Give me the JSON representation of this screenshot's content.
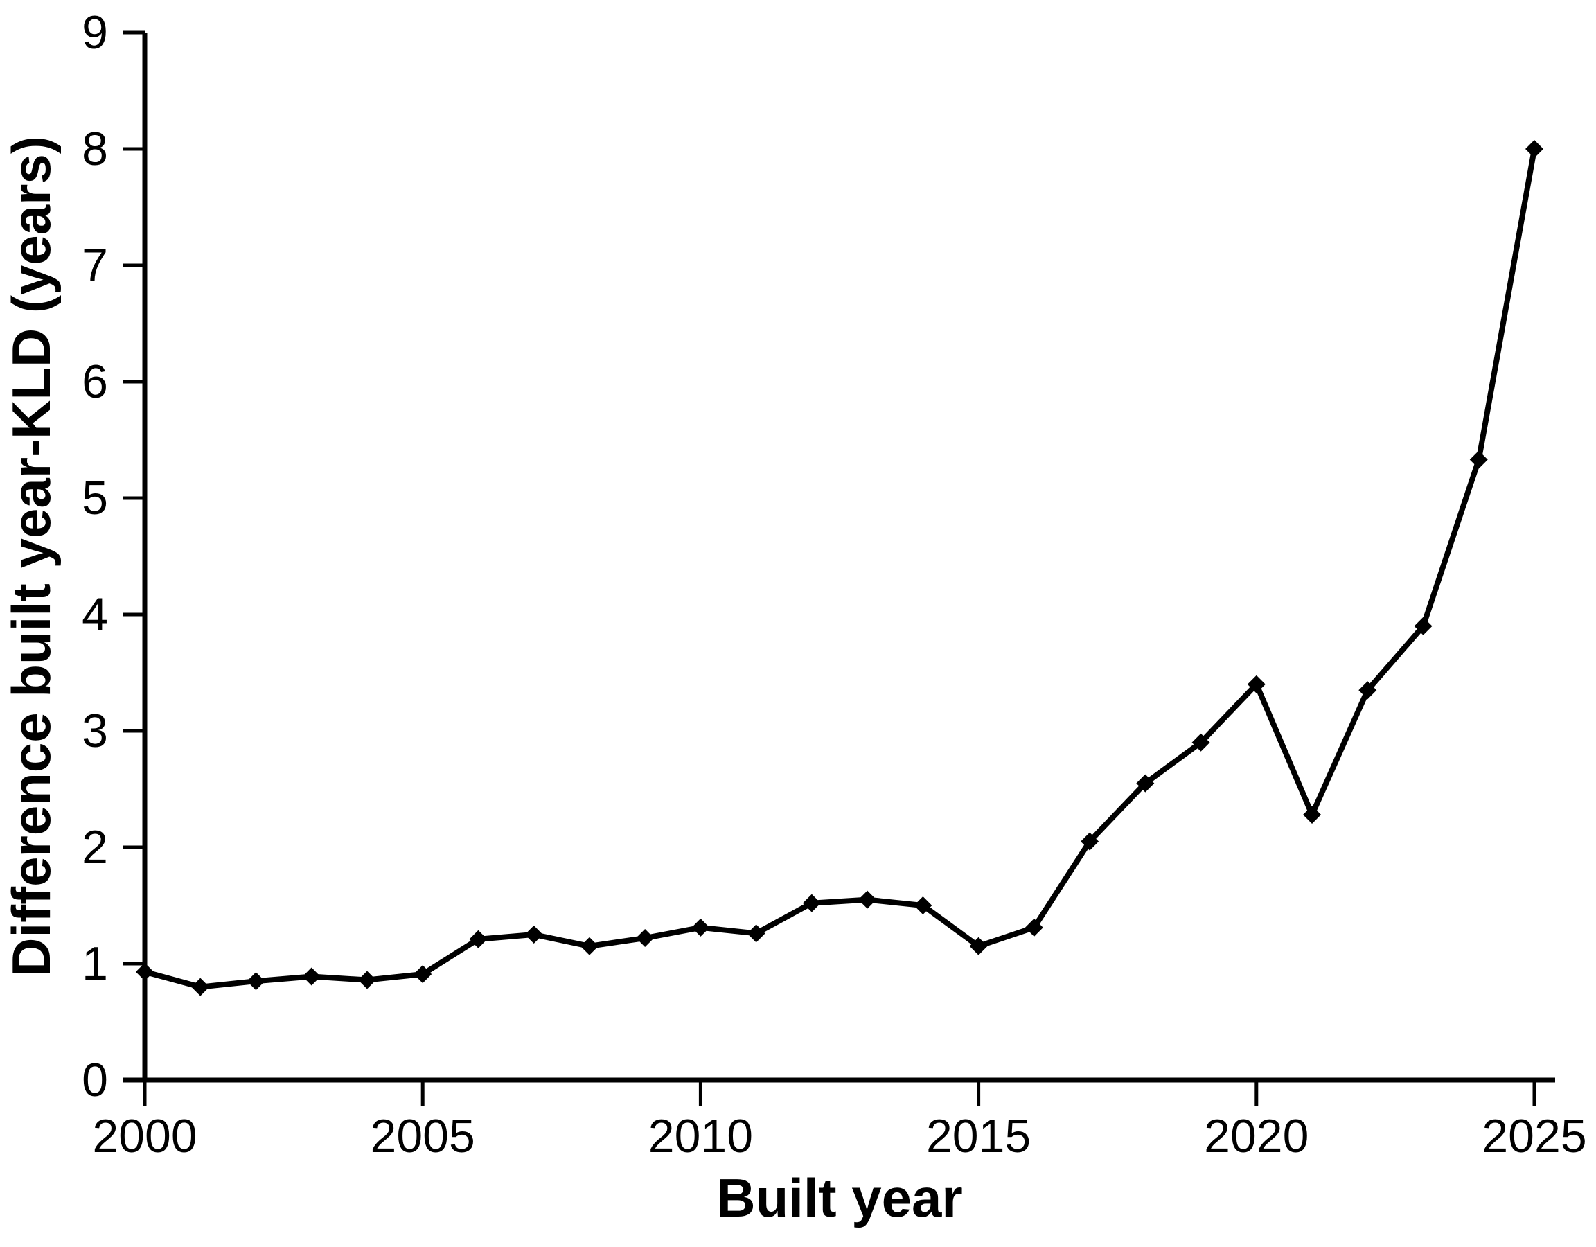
{
  "figure": {
    "background": "#ffffff",
    "line_color": "#000000",
    "marker_color": "#000000",
    "text_color": "#000000",
    "marker_shape": "diamond"
  },
  "chart_data": {
    "type": "line",
    "title": "",
    "xlabel": "Built year",
    "ylabel": "Difference built year-KLD (years)",
    "x": [
      2000,
      2001,
      2002,
      2003,
      2004,
      2005,
      2006,
      2007,
      2008,
      2009,
      2010,
      2011,
      2012,
      2013,
      2014,
      2015,
      2016,
      2017,
      2018,
      2019,
      2020,
      2021,
      2022,
      2023,
      2024,
      2025
    ],
    "series": [
      {
        "name": "Difference built year-KLD",
        "values": [
          0.93,
          0.8,
          0.85,
          0.89,
          0.86,
          0.91,
          1.21,
          1.25,
          1.15,
          1.22,
          1.31,
          1.26,
          1.52,
          1.55,
          1.5,
          1.15,
          1.31,
          2.05,
          2.55,
          2.9,
          3.4,
          2.28,
          3.35,
          3.9,
          5.33,
          8.0
        ]
      }
    ],
    "x_ticks": [
      "2000",
      "2005",
      "2010",
      "2015",
      "2020",
      "2025"
    ],
    "x_tick_values": [
      2000,
      2005,
      2010,
      2015,
      2020,
      2025
    ],
    "y_ticks": [
      "0",
      "1",
      "2",
      "3",
      "4",
      "5",
      "6",
      "7",
      "8",
      "9"
    ],
    "y_tick_values": [
      0,
      1,
      2,
      3,
      4,
      5,
      6,
      7,
      8,
      9
    ],
    "xlim": [
      2000,
      2025
    ],
    "ylim": [
      0,
      9
    ],
    "grid": false,
    "legend": false
  }
}
